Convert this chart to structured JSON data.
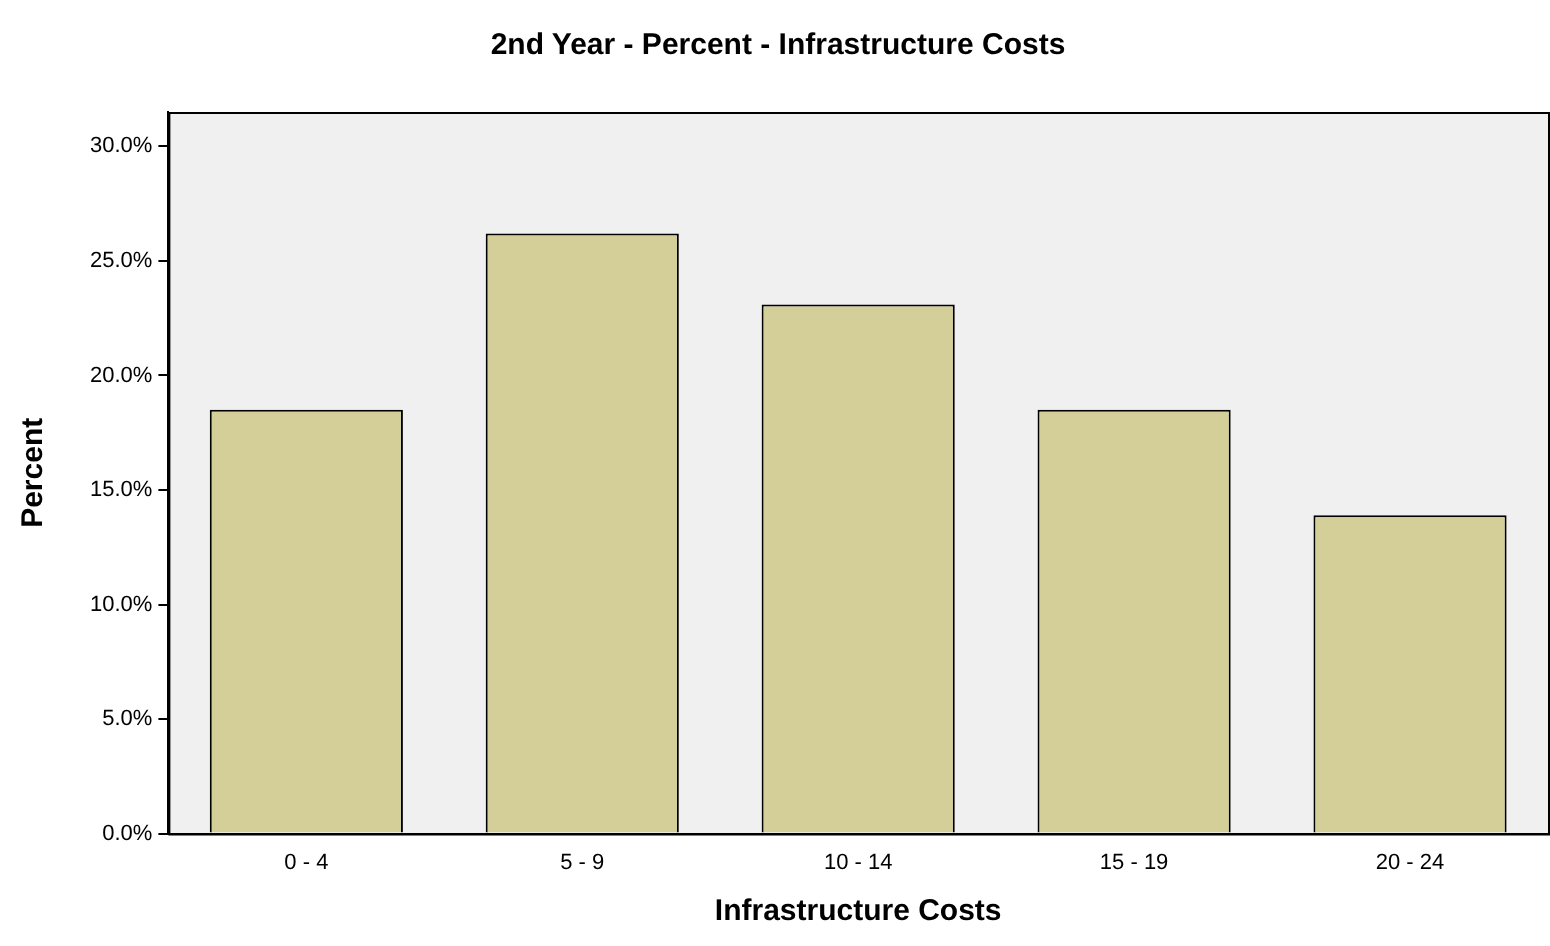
{
  "chart_data": {
    "type": "bar",
    "title": "2nd Year - Percent - Infrastructure Costs",
    "xlabel": "Infrastructure Costs",
    "ylabel": "Percent",
    "categories": [
      "0 - 4",
      "5 - 9",
      "10 - 14",
      "15 - 19",
      "20 - 24"
    ],
    "values": [
      18.5,
      26.2,
      23.1,
      18.5,
      13.9
    ],
    "color": "#d4cf98",
    "ylim": [
      0,
      31.5
    ],
    "yticks": [
      {
        "value": 0,
        "label": "0.0%"
      },
      {
        "value": 5,
        "label": "5.0%"
      },
      {
        "value": 10,
        "label": "10.0%"
      },
      {
        "value": 15,
        "label": "15.0%"
      },
      {
        "value": 20,
        "label": "20.0%"
      },
      {
        "value": 25,
        "label": "25.0%"
      },
      {
        "value": 30,
        "label": "30.0%"
      }
    ],
    "grid": false,
    "legend": false
  }
}
